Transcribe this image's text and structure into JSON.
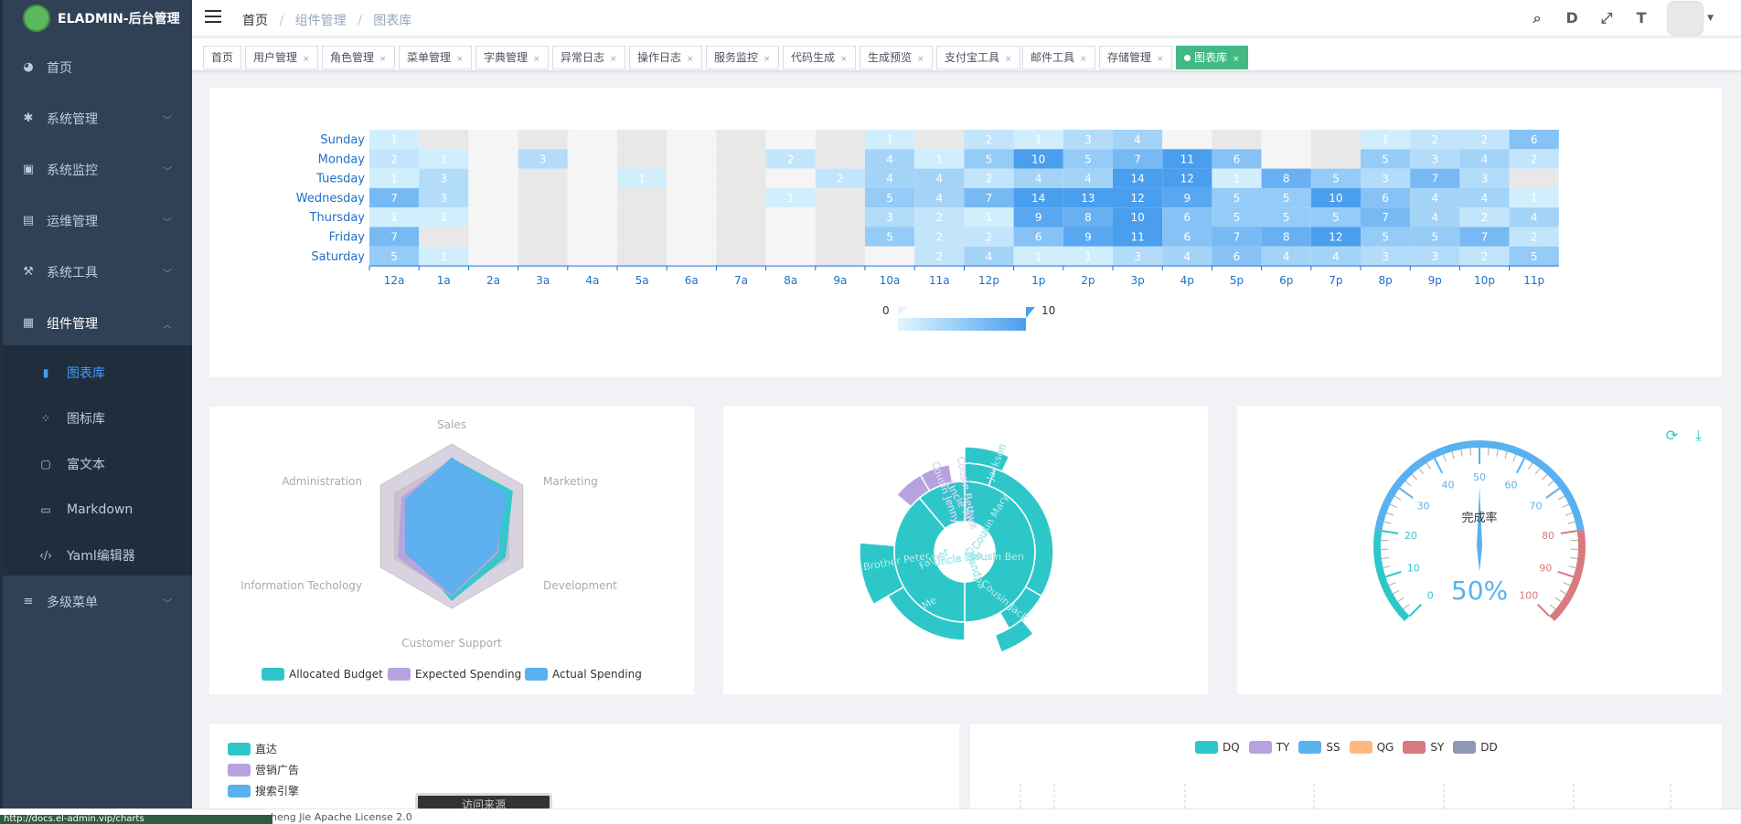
{
  "app": {
    "title": "ELADMIN-后台管理"
  },
  "sidebar": {
    "items": [
      {
        "label": "首页",
        "icon": "dashboard-icon"
      },
      {
        "label": "系统管理",
        "icon": "gear-icon"
      },
      {
        "label": "系统监控",
        "icon": "monitor-icon"
      },
      {
        "label": "运维管理",
        "icon": "server-icon"
      },
      {
        "label": "系统工具",
        "icon": "tools-icon"
      },
      {
        "label": "组件管理",
        "icon": "grid-icon"
      },
      {
        "label": "多级菜单",
        "icon": "list-icon"
      }
    ],
    "subitems": [
      {
        "label": "图表库",
        "icon": "chart-icon"
      },
      {
        "label": "图标库",
        "icon": "icons-icon"
      },
      {
        "label": "富文本",
        "icon": "richtext-icon"
      },
      {
        "label": "Markdown",
        "icon": "markdown-icon"
      },
      {
        "label": "Yaml编辑器",
        "icon": "code-icon"
      }
    ]
  },
  "breadcrumb": {
    "home": "首页",
    "sep": "/",
    "parent": "组件管理",
    "current": "图表库"
  },
  "tags": [
    "首页",
    "用户管理",
    "角色管理",
    "菜单管理",
    "字典管理",
    "异常日志",
    "操作日志",
    "服务监控",
    "代码生成",
    "生成预览",
    "支付宝工具",
    "邮件工具",
    "存储管理",
    "图表库"
  ],
  "heatmap": {
    "days": [
      "Sunday",
      "Monday",
      "Tuesday",
      "Wednesday",
      "Thursday",
      "Friday",
      "Saturday"
    ],
    "hours": [
      "12a",
      "1a",
      "2a",
      "3a",
      "4a",
      "5a",
      "6a",
      "7a",
      "8a",
      "9a",
      "10a",
      "11a",
      "12p",
      "1p",
      "2p",
      "3p",
      "4p",
      "5p",
      "6p",
      "7p",
      "8p",
      "9p",
      "10p",
      "11p"
    ],
    "visual_min": "0",
    "visual_max": "10",
    "rows": [
      [
        1,
        0,
        0,
        0,
        0,
        0,
        0,
        0,
        0,
        0,
        1,
        0,
        2,
        1,
        3,
        4,
        0,
        0,
        0,
        0,
        1,
        2,
        2,
        6
      ],
      [
        2,
        1,
        0,
        3,
        0,
        0,
        0,
        0,
        2,
        0,
        4,
        1,
        5,
        10,
        5,
        7,
        11,
        6,
        0,
        0,
        5,
        3,
        4,
        2
      ],
      [
        1,
        3,
        0,
        0,
        0,
        1,
        0,
        0,
        0,
        2,
        4,
        4,
        2,
        4,
        4,
        14,
        12,
        1,
        8,
        5,
        3,
        7,
        3,
        0
      ],
      [
        7,
        3,
        0,
        0,
        0,
        0,
        0,
        0,
        1,
        0,
        5,
        4,
        7,
        14,
        13,
        12,
        9,
        5,
        5,
        10,
        6,
        4,
        4,
        1
      ],
      [
        1,
        1,
        0,
        0,
        0,
        0,
        0,
        0,
        0,
        0,
        3,
        2,
        1,
        9,
        8,
        10,
        6,
        5,
        5,
        5,
        7,
        4,
        2,
        4
      ],
      [
        7,
        0,
        0,
        0,
        0,
        0,
        0,
        0,
        0,
        0,
        5,
        2,
        2,
        6,
        9,
        11,
        6,
        7,
        8,
        12,
        5,
        5,
        7,
        2
      ],
      [
        5,
        1,
        0,
        0,
        0,
        0,
        0,
        0,
        0,
        0,
        0,
        2,
        4,
        1,
        1,
        3,
        4,
        6,
        4,
        4,
        3,
        3,
        2,
        5
      ]
    ]
  },
  "radar": {
    "indicators": [
      "Sales",
      "Marketing",
      "Development",
      "Customer Support",
      "Information Techology",
      "Administration"
    ],
    "legend": [
      "Allocated Budget",
      "Expected Spending",
      "Actual Spending"
    ]
  },
  "sunburst": {
    "labels": [
      "Grandpa",
      "Uncle Leo",
      "Cousin Jack",
      "Cousin Mary",
      "Jackson",
      "Cousin Ben",
      "Uncle Nike",
      "Cousin Betty",
      "Cousin Jenny",
      "Father",
      "Me",
      "Brother Peter"
    ]
  },
  "gauge": {
    "title": "完成率",
    "value": "50%",
    "ticks": [
      "0",
      "10",
      "20",
      "30",
      "40",
      "50",
      "60",
      "70",
      "80",
      "90",
      "100"
    ]
  },
  "pie_legend": [
    "直达",
    "营销广告",
    "搜索引擎"
  ],
  "pie_title": "访问来源",
  "bar_legend": [
    "DQ",
    "TY",
    "SS",
    "QG",
    "SY",
    "DD"
  ],
  "footer": {
    "text": "heng Jie Apache License 2.0",
    "url": "http://docs.el-admin.vip/charts"
  },
  "colors": {
    "sidebar": "#304156",
    "accent": "#409eff",
    "tag_active": "#42b983",
    "teal": "#2ec7c9",
    "purple": "#b6a2de",
    "blue": "#5ab1ef",
    "orange": "#ffb980",
    "red": "#d87a80",
    "gray": "#8d98b3"
  }
}
